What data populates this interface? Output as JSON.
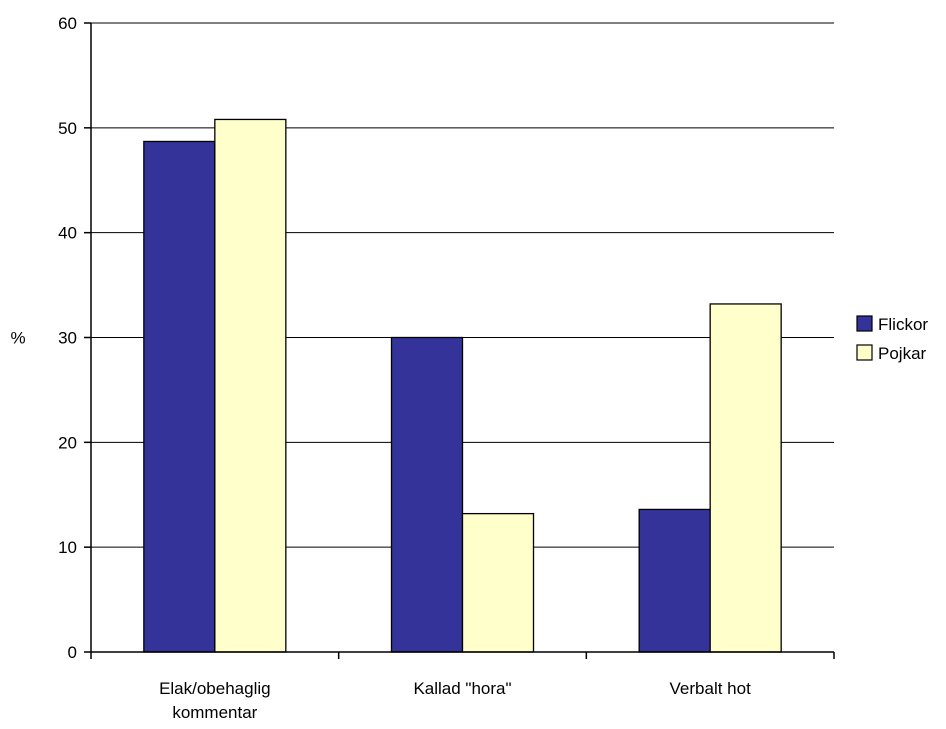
{
  "chart_data": {
    "type": "bar",
    "title": "",
    "xlabel": "",
    "ylabel": "%",
    "ylim": [
      0,
      60
    ],
    "yticks": [
      0,
      10,
      20,
      30,
      40,
      50,
      60
    ],
    "grid": true,
    "legend_position": "right",
    "categories": [
      [
        "Elak/obehaglig",
        "kommentar"
      ],
      [
        "Kallad \"hora\""
      ],
      [
        "Verbalt hot"
      ]
    ],
    "series": [
      {
        "name": "Flickor",
        "color": "#333399",
        "values": [
          48.7,
          30.0,
          13.6
        ]
      },
      {
        "name": "Pojkar",
        "color": "#ffffcc",
        "values": [
          50.8,
          13.2,
          33.2
        ]
      }
    ]
  }
}
